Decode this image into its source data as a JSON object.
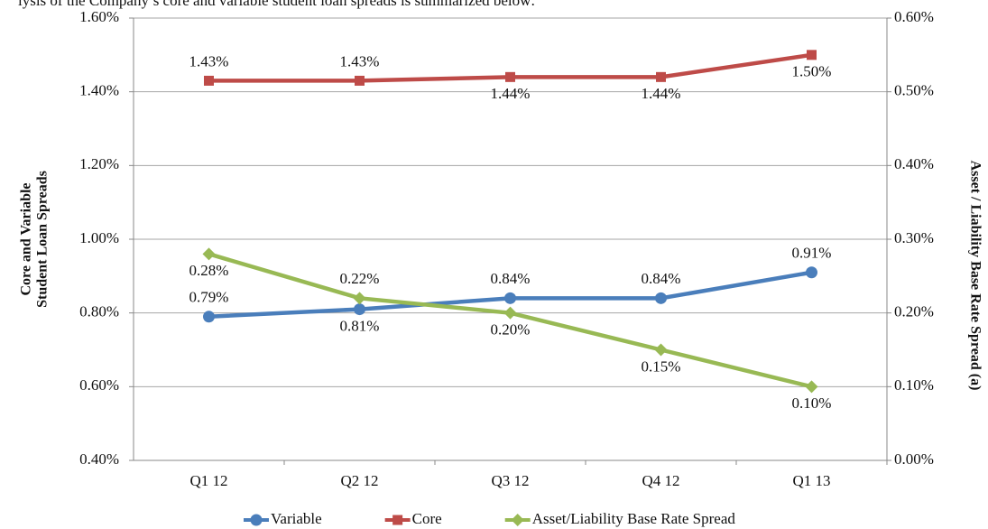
{
  "caption": "lysis of the Company’s core and variable student loan spreads is summarized below:",
  "chart_data": {
    "type": "line",
    "y_label": [
      "Core and Variable",
      "Student Loan Spreads"
    ],
    "y2_label": "Asset / Liability Base Rate Spread (a)",
    "categories": [
      "Q1 12",
      "Q2 12",
      "Q3 12",
      "Q4 12",
      "Q1 13"
    ],
    "ylim": [
      0.4,
      1.6
    ],
    "yticks": [
      {
        "value": 0.4,
        "label": "0.40%"
      },
      {
        "value": 0.6,
        "label": "0.60%"
      },
      {
        "value": 0.8,
        "label": "0.80%"
      },
      {
        "value": 1.0,
        "label": "1.00%"
      },
      {
        "value": 1.2,
        "label": "1.20%"
      },
      {
        "value": 1.4,
        "label": "1.40%"
      },
      {
        "value": 1.6,
        "label": "1.60%"
      }
    ],
    "y2lim": [
      0,
      0.6
    ],
    "y2ticks": [
      {
        "value": 0,
        "label": "0.00%"
      },
      {
        "value": 0.1,
        "label": "0.10%"
      },
      {
        "value": 0.2,
        "label": "0.20%"
      },
      {
        "value": 0.3,
        "label": "0.30%"
      },
      {
        "value": 0.4,
        "label": "0.40%"
      },
      {
        "value": 0.5,
        "label": "0.50%"
      },
      {
        "value": 0.6,
        "label": "0.60%"
      }
    ],
    "grid": true,
    "legend": "bottom",
    "series": [
      {
        "name": "Variable",
        "color": "#4a7ebb",
        "marker": "circle",
        "values": [
          0.79,
          0.81,
          0.84,
          0.84,
          0.91
        ],
        "value_labels": [
          "0.79%",
          "0.81%",
          "0.84%",
          "0.84%",
          "0.91%"
        ]
      },
      {
        "name": "Core",
        "color": "#be4b48",
        "marker": "square",
        "values": [
          1.43,
          1.43,
          1.44,
          1.44,
          1.5
        ],
        "value_labels": [
          "1.43%",
          "1.43%",
          "1.44%",
          "1.44%",
          "1.50%"
        ]
      },
      {
        "name": "Asset/Liability Base Rate Spread",
        "color": "#98b954",
        "marker": "diamond",
        "axis": "y2",
        "values": [
          0.28,
          0.22,
          0.2,
          0.15,
          0.1
        ],
        "value_labels": [
          "0.28%",
          "0.22%",
          "0.20%",
          "0.15%",
          "0.10%"
        ]
      }
    ]
  }
}
